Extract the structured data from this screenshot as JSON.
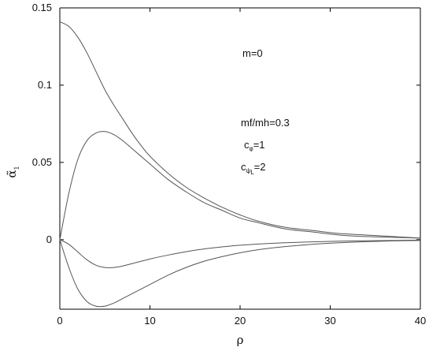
{
  "chart_data": {
    "type": "line",
    "xlabel": "ρ",
    "ylabel": "α̃",
    "ylabel_subscript": "1",
    "xlim": [
      0,
      40
    ],
    "ylim": [
      -0.045,
      0.15
    ],
    "grid": false,
    "x_ticks": [
      0,
      10,
      20,
      30,
      40
    ],
    "y_ticks": [
      0,
      0.05,
      0.1,
      0.15
    ],
    "x_tick_labels": [
      "0",
      "10",
      "20",
      "30",
      "40"
    ],
    "y_tick_labels": [
      "0",
      "0.05",
      "0.1",
      "0.15"
    ],
    "annotations": {
      "m": "m=0",
      "ratio": "mf/mh=0.3",
      "c_phi_base": "c",
      "c_phi_sub": "φ",
      "c_phi_value": "=1",
      "c_psi_base": "c",
      "c_psi_sub": "ψ",
      "c_psi_sub2": "L",
      "c_psi_value": "=2"
    },
    "series": [
      {
        "x": [
          0,
          1,
          2,
          3,
          4,
          5,
          6,
          7,
          8,
          9,
          10,
          12,
          14,
          16,
          18,
          20,
          22,
          25,
          28,
          31,
          34,
          37,
          40
        ],
        "y": [
          0.141,
          0.138,
          0.131,
          0.121,
          0.109,
          0.097,
          0.087,
          0.078,
          0.069,
          0.061,
          0.054,
          0.043,
          0.034,
          0.027,
          0.021,
          0.016,
          0.012,
          0.008,
          0.006,
          0.004,
          0.003,
          0.002,
          0.001
        ]
      },
      {
        "x": [
          0,
          1,
          2,
          3,
          4,
          5,
          6,
          7,
          8,
          9,
          10,
          12,
          14,
          16,
          18,
          20,
          22,
          25,
          28,
          31,
          34,
          37,
          40
        ],
        "y": [
          0,
          0.03,
          0.052,
          0.064,
          0.069,
          0.07,
          0.068,
          0.064,
          0.059,
          0.054,
          0.049,
          0.039,
          0.031,
          0.024,
          0.019,
          0.014,
          0.011,
          0.007,
          0.005,
          0.003,
          0.002,
          0.0015,
          0.001
        ]
      },
      {
        "x": [
          0,
          1,
          2,
          3,
          4,
          5,
          6,
          7,
          8,
          10,
          12,
          14,
          16,
          18,
          20,
          22,
          25,
          28,
          31,
          34,
          37,
          40
        ],
        "y": [
          0,
          -0.003,
          -0.008,
          -0.013,
          -0.0165,
          -0.018,
          -0.018,
          -0.017,
          -0.0155,
          -0.0125,
          -0.01,
          -0.0078,
          -0.006,
          -0.0047,
          -0.0036,
          -0.0028,
          -0.002,
          -0.0014,
          -0.001,
          -0.0007,
          -0.0005,
          -0.0003
        ]
      },
      {
        "x": [
          0,
          1,
          2,
          3,
          4,
          5,
          6,
          7,
          8,
          10,
          12,
          14,
          16,
          18,
          20,
          22,
          25,
          28,
          31,
          34,
          37,
          40
        ],
        "y": [
          0,
          -0.018,
          -0.032,
          -0.04,
          -0.043,
          -0.043,
          -0.041,
          -0.038,
          -0.035,
          -0.029,
          -0.023,
          -0.018,
          -0.014,
          -0.011,
          -0.0085,
          -0.0065,
          -0.0045,
          -0.003,
          -0.002,
          -0.0013,
          -0.0008,
          -0.0005
        ]
      }
    ]
  }
}
